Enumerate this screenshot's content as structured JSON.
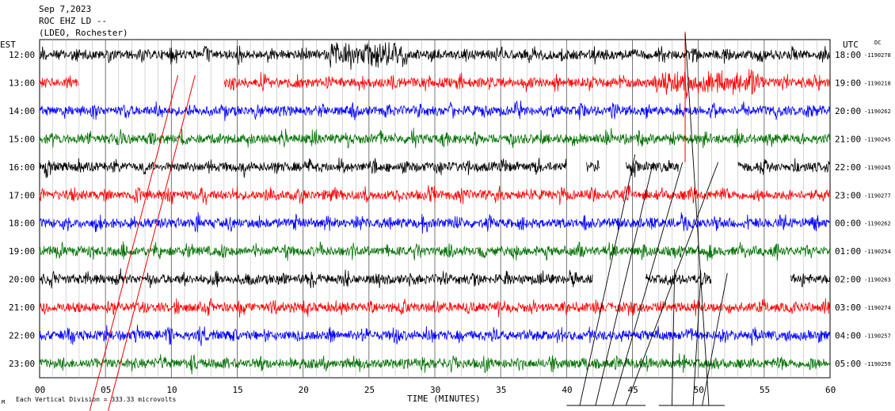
{
  "header": {
    "date": "Sep 7,2023",
    "station": "ROC EHZ LD --",
    "network": "(LDEO, Rochester)"
  },
  "left_tz": "EST",
  "right_tz": "UTC",
  "dc_label": "DC",
  "footer": {
    "scale_note": "Each Vertical Division = 333.33 microvolts",
    "corner_mark": "M"
  },
  "chart_data": {
    "type": "line",
    "title": "",
    "xlabel": "TIME (MINUTES)",
    "ylabel": "",
    "xlim": [
      0,
      60
    ],
    "x_ticks": [
      "00",
      "05",
      "10",
      "15",
      "20",
      "25",
      "30",
      "35",
      "40",
      "45",
      "50",
      "55",
      "60"
    ],
    "grid": "vertical-minute-lines",
    "trace_colors": [
      "#000000",
      "#ff0000",
      "#0000ff",
      "#007000"
    ],
    "rows": [
      {
        "left": "12:00",
        "right": "18:00",
        "dc": "-1190278",
        "color": "#000000"
      },
      {
        "left": "13:00",
        "right": "19:00",
        "dc": "-1190218",
        "color": "#ff0000"
      },
      {
        "left": "14:00",
        "right": "20:00",
        "dc": "-1190262",
        "color": "#0000ff"
      },
      {
        "left": "15:00",
        "right": "21:00",
        "dc": "-1190245",
        "color": "#007000"
      },
      {
        "left": "16:00",
        "right": "22:00",
        "dc": "-1190245",
        "color": "#000000"
      },
      {
        "left": "17:00",
        "right": "23:00",
        "dc": "-1190277",
        "color": "#ff0000"
      },
      {
        "left": "18:00",
        "right": "00:00",
        "dc": "-1190262",
        "color": "#0000ff"
      },
      {
        "left": "19:00",
        "right": "01:00",
        "dc": "-1190254",
        "color": "#007000"
      },
      {
        "left": "20:00",
        "right": "02:00",
        "dc": "-1190263",
        "color": "#000000"
      },
      {
        "left": "21:00",
        "right": "03:00",
        "dc": "-1190274",
        "color": "#ff0000"
      },
      {
        "left": "22:00",
        "right": "04:00",
        "dc": "-1190257",
        "color": "#0000ff"
      },
      {
        "left": "23:00",
        "right": "05:00",
        "dc": "-1190259",
        "color": "#007000"
      }
    ]
  }
}
